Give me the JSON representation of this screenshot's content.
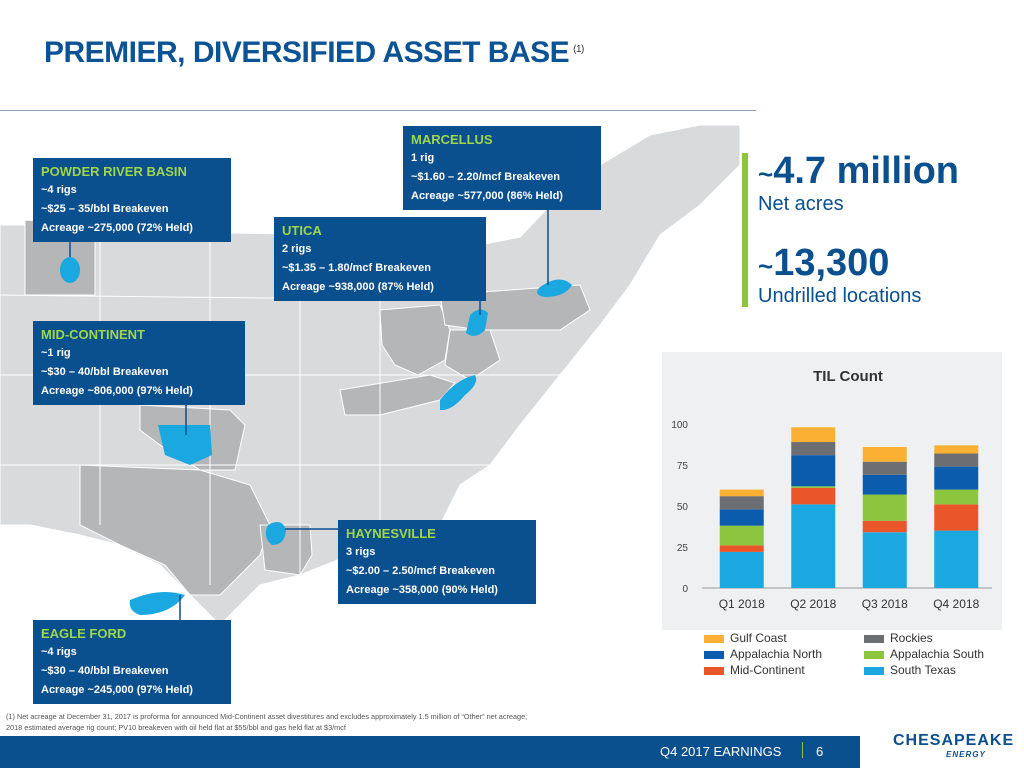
{
  "slide": {
    "title": "PREMIER, DIVERSIFIED ASSET BASE",
    "title_footnote_marker": "(1)"
  },
  "regions": [
    {
      "name": "POWDER RIVER BASIN",
      "lines": [
        "~4 rigs",
        "~$25 – 35/bbl Breakeven",
        "Acreage ~275,000 (72% Held)"
      ]
    },
    {
      "name": "MARCELLUS",
      "lines": [
        "1 rig",
        "~$1.60 – 2.20/mcf Breakeven",
        "Acreage ~577,000 (86% Held)"
      ]
    },
    {
      "name": "UTICA",
      "lines": [
        "2 rigs",
        "~$1.35 – 1.80/mcf Breakeven",
        "Acreage ~938,000 (87% Held)"
      ]
    },
    {
      "name": "MID-CONTINENT",
      "lines": [
        "~1 rig",
        "~$30 – 40/bbl Breakeven",
        "Acreage ~806,000 (97% Held)"
      ]
    },
    {
      "name": "HAYNESVILLE",
      "lines": [
        "3 rigs",
        "~$2.00 – 2.50/mcf Breakeven",
        "Acreage ~358,000 (90% Held)"
      ]
    },
    {
      "name": "EAGLE FORD",
      "lines": [
        "~4 rigs",
        "~$30 – 40/bbl Breakeven",
        "Acreage ~245,000 (97% Held)"
      ]
    }
  ],
  "stats": {
    "net_acres_tilde": "~",
    "net_acres_value": "4.7 million",
    "net_acres_label": "Net acres",
    "undrilled_tilde": "~",
    "undrilled_value": "13,300",
    "undrilled_label": "Undrilled locations"
  },
  "chart_data": {
    "type": "bar",
    "stacked": true,
    "title": "TIL Count",
    "categories": [
      "Q1 2018",
      "Q2 2018",
      "Q3 2018",
      "Q4 2018"
    ],
    "ylim": [
      0,
      100
    ],
    "yticks": [
      0,
      25,
      50,
      75,
      100
    ],
    "grid": false,
    "series": [
      {
        "name": "South Texas",
        "color": "#1ba7e0",
        "values": [
          22,
          51,
          34,
          35
        ]
      },
      {
        "name": "Mid-Continent",
        "color": "#e8562a",
        "values": [
          4,
          10,
          7,
          16
        ]
      },
      {
        "name": "Appalachia South",
        "color": "#8cc63f",
        "values": [
          12,
          1,
          16,
          9
        ]
      },
      {
        "name": "Appalachia North",
        "color": "#0b5cad",
        "values": [
          10,
          19,
          12,
          14
        ]
      },
      {
        "name": "Rockies",
        "color": "#6d6e71",
        "values": [
          8,
          8,
          8,
          8
        ]
      },
      {
        "name": "Gulf Coast",
        "color": "#fbb034",
        "values": [
          4,
          9,
          9,
          5
        ]
      }
    ],
    "legend_order": [
      "Gulf Coast",
      "Rockies",
      "Appalachia North",
      "Appalachia South",
      "Mid-Continent",
      "South Texas"
    ]
  },
  "footnote": {
    "line1": "(1)  Net acreage at December 31, 2017 is proforma for announced Mid-Continent asset divestitures and excludes approximately 1.5 million of “Other” net acreage;",
    "line2": "2018 estimated average rig count; PV10 breakeven with oil held flat at $55/bbl and gas held flat at $3/mcf"
  },
  "footer": {
    "label": "Q4 2017 EARNINGS",
    "page": "6",
    "logo": "CHESAPEAKE",
    "logo_sub": "ENERGY"
  }
}
